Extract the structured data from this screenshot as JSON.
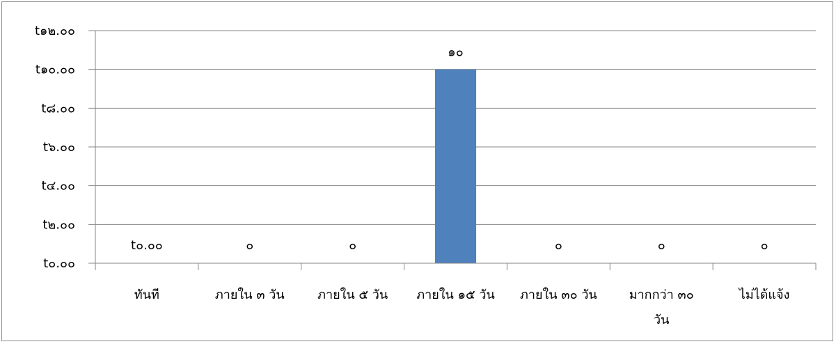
{
  "chart_data": {
    "type": "bar",
    "title": "",
    "xlabel": "",
    "ylabel": "",
    "categories": [
      [
        "ทันที"
      ],
      [
        "ภายใน ๓ วัน"
      ],
      [
        "ภายใน ๕ วัน"
      ],
      [
        "ภายใน ๑๕ วัน"
      ],
      [
        "ภายใน ๓๐ วัน"
      ],
      [
        "มากกว่า ๓๐",
        "วัน"
      ],
      [
        "ไม่ได้แจ้ง"
      ]
    ],
    "values": [
      0,
      0,
      0,
      10,
      0,
      0,
      0
    ],
    "data_labels": [
      "t๐.๐๐",
      "๐",
      "๐",
      "๑๐",
      "๐",
      "๐",
      "๐"
    ],
    "y_tick_labels": [
      "t๐.๐๐",
      "t๒.๐๐",
      "t๔.๐๐",
      "t๖.๐๐",
      "t๘.๐๐",
      "t๑๐.๐๐",
      "t๑๒.๐๐"
    ],
    "ylim": [
      0,
      12
    ],
    "grid": true,
    "legend": "none",
    "bar_color": "#4f81bd",
    "gridline_color": "#868686"
  }
}
